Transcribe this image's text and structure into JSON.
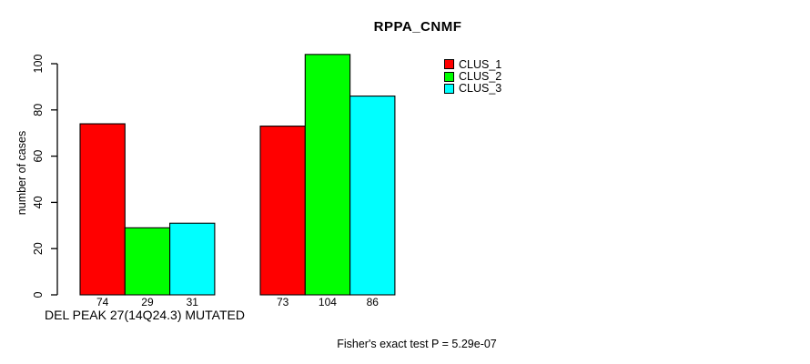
{
  "chart_data": {
    "type": "bar",
    "title": "RPPA_CNMF",
    "ylabel": "number of cases",
    "xlabel": "DEL PEAK 27(14Q24.3) MUTATED",
    "annotation": "Fisher's exact test P = 5.29e-07",
    "categories": [
      "DEL PEAK 27(14Q24.3) MUTATED",
      ""
    ],
    "series": [
      {
        "name": "CLUS_1",
        "color": "#ff0000",
        "values": [
          74,
          73
        ]
      },
      {
        "name": "CLUS_2",
        "color": "#00ff00",
        "values": [
          29,
          104
        ]
      },
      {
        "name": "CLUS_3",
        "color": "#00ffff",
        "values": [
          31,
          86
        ]
      }
    ],
    "bar_value_labels": [
      [
        74,
        29,
        31
      ],
      [
        73,
        104,
        86
      ]
    ],
    "yticks": [
      0,
      20,
      40,
      60,
      80,
      100
    ],
    "ylim": [
      0,
      104
    ],
    "grid": false,
    "legend_position": "top-right",
    "axis_color": "#000000",
    "bar_border_color": "#000000",
    "background_color": "#ffffff"
  }
}
